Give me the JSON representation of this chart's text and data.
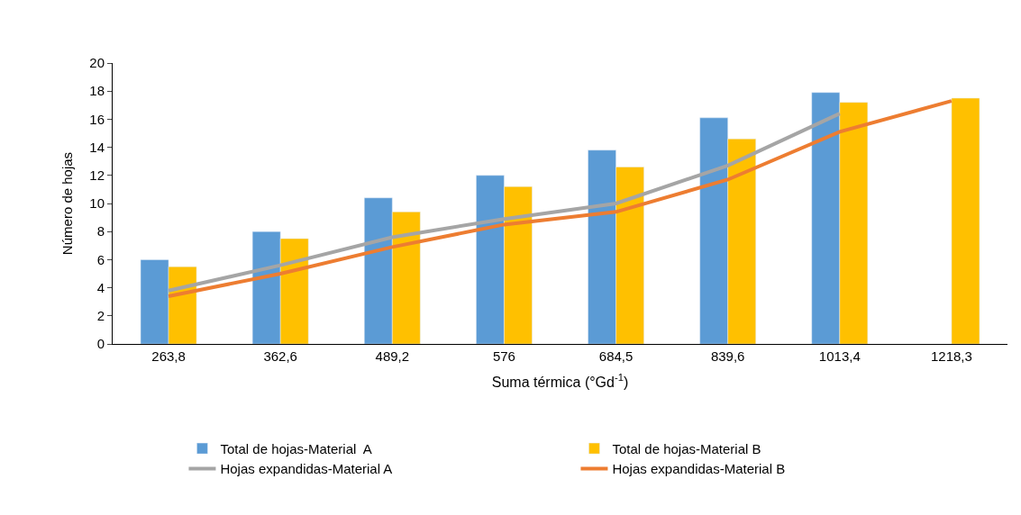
{
  "chart_data": {
    "type": "bar",
    "xlabel": "Suma térmica (°Gd$^{-1}$)",
    "ylabel": "Número de hojas",
    "categories": [
      "263,8",
      "362,6",
      "489,2",
      "576",
      "684,5",
      "839,6",
      "1013,4",
      "1218,3"
    ],
    "series": [
      {
        "name": "Total de hojas-Material  A",
        "color": "#5b9bd5",
        "values": [
          6.0,
          8.0,
          10.4,
          12.0,
          13.8,
          16.1,
          17.9,
          null
        ]
      },
      {
        "name": "Total de hojas-Material B",
        "color": "#ffc000",
        "values": [
          5.5,
          7.5,
          9.4,
          11.2,
          12.6,
          14.6,
          17.2,
          17.5
        ]
      },
      {
        "name": "Hojas expandidas-Material A",
        "type": "line",
        "color": "#a5a5a5",
        "values": [
          3.8,
          5.6,
          7.6,
          8.9,
          10.0,
          12.7,
          16.4,
          null
        ]
      },
      {
        "name": "Hojas expandidas-Material B",
        "type": "line",
        "color": "#ed7d31",
        "values": [
          3.4,
          5.0,
          6.9,
          8.5,
          9.4,
          11.7,
          15.1,
          17.3
        ]
      }
    ],
    "ylim": [
      0,
      20
    ],
    "yticks": [
      0,
      2,
      4,
      6,
      8,
      10,
      12,
      14,
      16,
      18,
      20
    ],
    "legend": "bottom",
    "marker": "none",
    "line_style": "solid"
  }
}
